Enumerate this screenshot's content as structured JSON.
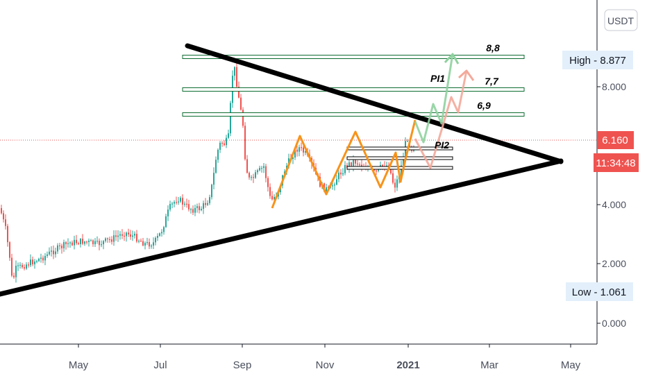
{
  "chart_data": {
    "type": "candlestick",
    "currency_label": "USDT",
    "x_tick_labels": [
      "May",
      "Jul",
      "Sep",
      "Nov",
      "2021",
      "Mar",
      "May"
    ],
    "y_tick_labels": [
      "0.000",
      "2.000",
      "4.000",
      "8.000"
    ],
    "y_scale": "log-like",
    "current_price": "6.160",
    "countdown": "11:34:48",
    "high_label": "High - 8.877",
    "low_label": "Low - 1.061",
    "resistance_levels": [
      {
        "label": "8,8",
        "value": 8.8
      },
      {
        "label": "7,7",
        "value": 7.7
      },
      {
        "label": "6,9",
        "value": 6.9
      }
    ],
    "annotations": [
      "PI1",
      "PI2"
    ],
    "colors": {
      "up": "#26a69a",
      "down": "#ef5350",
      "trendline": "#000000",
      "zigzag": "#f7931a",
      "projection_1": "#8fd19e",
      "projection_2": "#f3a99a",
      "level_fill": "#ffffff",
      "level_stroke": "#0b6b2f",
      "price_badge": "#ef5350",
      "extreme_badge": "#e3f0fb"
    }
  }
}
